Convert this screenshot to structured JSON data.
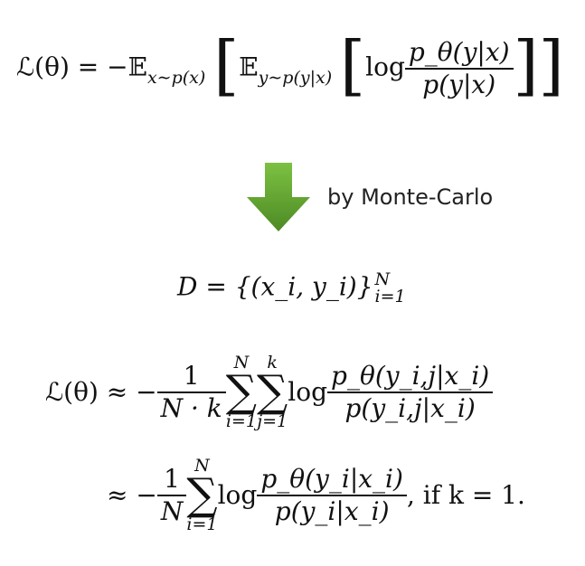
{
  "equation1": {
    "lhs": "ℒ(θ) = −𝔼",
    "outer_sub": "x∼p(x)",
    "inner_E": "𝔼",
    "inner_sub": "y∼p(y|x)",
    "log": "log",
    "num": "p_θ(y|x)",
    "den": "p(y|x)"
  },
  "arrow": {
    "icon": "down-arrow-icon",
    "color": "#5a9a2e",
    "caption": "by Monte-Carlo"
  },
  "dataset": {
    "lhs": "D = {(x_i, y_i)}",
    "sup": "N",
    "sub": "i=1"
  },
  "equation2": {
    "lhs": "ℒ(θ) ≈ −",
    "frac_num": "1",
    "frac_den": "N · k",
    "sum1_top": "N",
    "sum1_bottom": "i=1",
    "sum2_top": "k",
    "sum2_bottom": "j=1",
    "log": "log",
    "num": "p_θ(y_i,j|x_i)",
    "den": "p(y_i,j|x_i)"
  },
  "equation3": {
    "lhs": "≈ −",
    "frac_num": "1",
    "frac_den": "N",
    "sum_top": "N",
    "sum_bottom": "i=1",
    "log": "log",
    "num": "p_θ(y_i|x_i)",
    "den": "p(y_i|x_i)",
    "condition": ", if k = 1."
  }
}
